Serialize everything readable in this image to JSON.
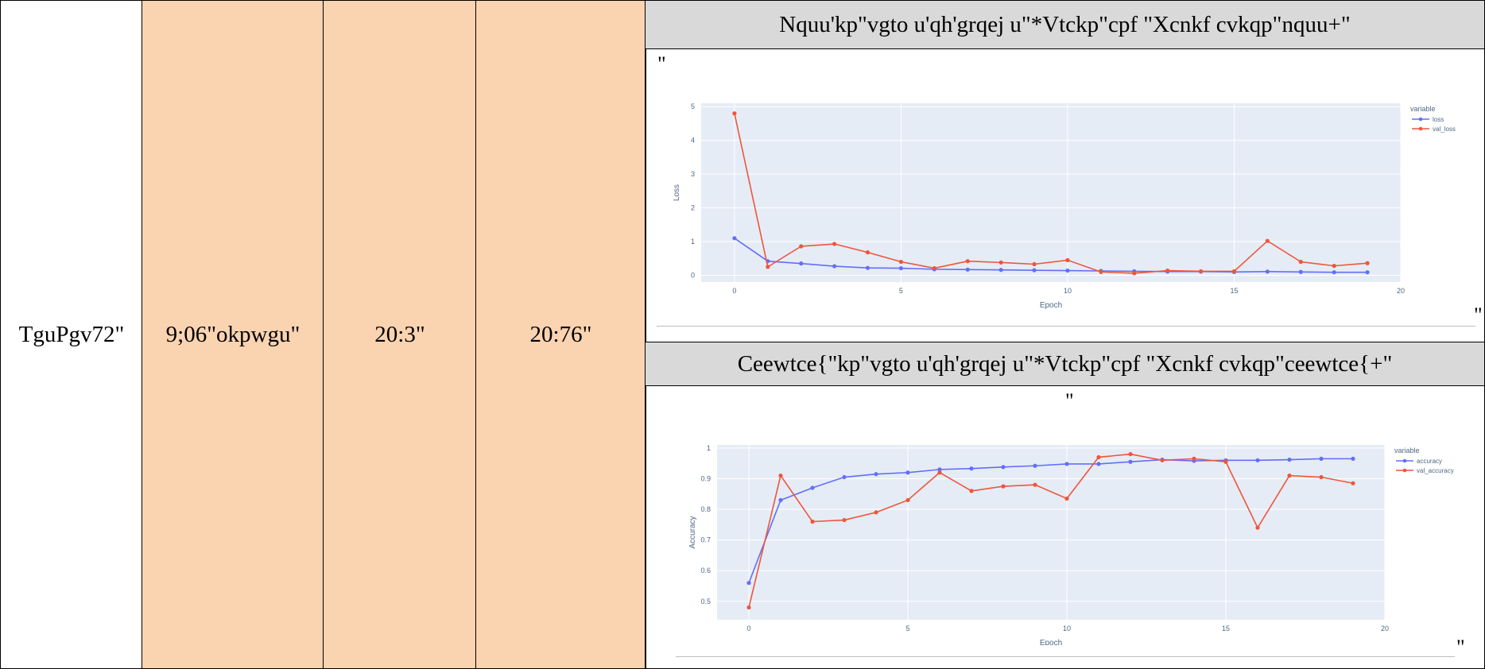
{
  "row": {
    "model_name": "TguPgv72\"",
    "params": "9;06\"okpwgu\"",
    "value_a": "20:3\"",
    "value_b": "20:76\""
  },
  "sections": {
    "loss_title": "Nquu'kp\"vgto u'qh'grqej u\"*Vtckp\"cpf \"Xcnkf cvkqp\"nquu+\"",
    "accuracy_title": "Ceewtce{\"kp\"vgto u'qh'grqej u\"*Vtckp\"cpf \"Xcnkf cvkqp\"ceewtce{+\""
  },
  "marks": {
    "quote": "\""
  },
  "colors": {
    "blue": "#636efa",
    "red": "#ef553b",
    "plot_bg": "#e5ecf6",
    "peach": "#fad3b1",
    "header_bg": "#d9d9d9"
  },
  "chart_data": [
    {
      "type": "line",
      "xlabel": "Epoch",
      "ylabel": "Loss",
      "xlim": [
        -1,
        20
      ],
      "ylim": [
        -0.2,
        5.1
      ],
      "xticks": [
        0,
        5,
        10,
        15,
        20
      ],
      "yticks": [
        0,
        1,
        2,
        3,
        4,
        5
      ],
      "legend_title": "variable",
      "legend_position": "top-right",
      "x": [
        0,
        1,
        2,
        3,
        4,
        5,
        6,
        7,
        8,
        9,
        10,
        11,
        12,
        13,
        14,
        15,
        16,
        17,
        18,
        19
      ],
      "series": [
        {
          "name": "loss",
          "color": "#636efa",
          "values": [
            1.1,
            0.42,
            0.35,
            0.27,
            0.22,
            0.21,
            0.18,
            0.17,
            0.16,
            0.15,
            0.14,
            0.13,
            0.12,
            0.11,
            0.11,
            0.1,
            0.11,
            0.1,
            0.09,
            0.09
          ]
        },
        {
          "name": "val_loss",
          "color": "#ef553b",
          "values": [
            4.8,
            0.25,
            0.86,
            0.93,
            0.68,
            0.4,
            0.21,
            0.42,
            0.38,
            0.33,
            0.45,
            0.1,
            0.06,
            0.14,
            0.12,
            0.12,
            1.02,
            0.4,
            0.28,
            0.36
          ]
        }
      ]
    },
    {
      "type": "line",
      "xlabel": "Epoch",
      "ylabel": "Accuracy",
      "xlim": [
        -1,
        20
      ],
      "ylim": [
        0.44,
        1.01
      ],
      "xticks": [
        0,
        5,
        10,
        15,
        20
      ],
      "yticks": [
        0.5,
        0.6,
        0.7,
        0.8,
        0.9,
        1
      ],
      "legend_title": "variable",
      "legend_position": "top-right",
      "x": [
        0,
        1,
        2,
        3,
        4,
        5,
        6,
        7,
        8,
        9,
        10,
        11,
        12,
        13,
        14,
        15,
        16,
        17,
        18,
        19
      ],
      "series": [
        {
          "name": "accuracy",
          "color": "#636efa",
          "values": [
            0.56,
            0.83,
            0.87,
            0.905,
            0.915,
            0.92,
            0.93,
            0.933,
            0.938,
            0.942,
            0.948,
            0.948,
            0.955,
            0.962,
            0.958,
            0.96,
            0.96,
            0.962,
            0.965,
            0.965
          ]
        },
        {
          "name": "val_accuracy",
          "color": "#ef553b",
          "values": [
            0.48,
            0.91,
            0.76,
            0.765,
            0.79,
            0.83,
            0.92,
            0.86,
            0.875,
            0.88,
            0.835,
            0.97,
            0.98,
            0.96,
            0.965,
            0.955,
            0.74,
            0.91,
            0.905,
            0.885
          ]
        }
      ]
    }
  ]
}
